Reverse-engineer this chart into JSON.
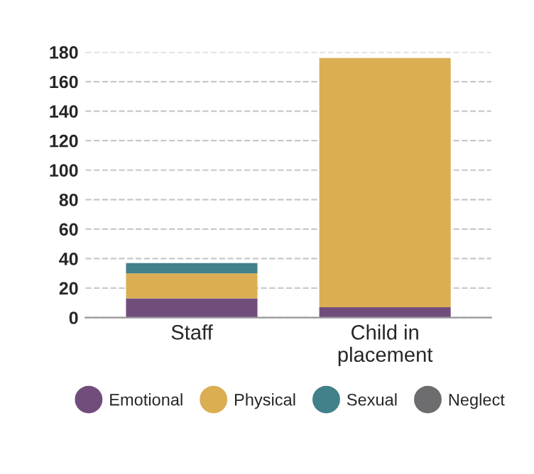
{
  "chart_data": {
    "type": "bar",
    "stacked": true,
    "categories": [
      "Staff",
      "Child in\nplacement"
    ],
    "series": [
      {
        "name": "Emotional",
        "color": "#714d7c",
        "values": [
          13,
          7
        ]
      },
      {
        "name": "Physical",
        "color": "#dbae54",
        "values": [
          17,
          169
        ]
      },
      {
        "name": "Sexual",
        "color": "#42808a",
        "values": [
          7,
          0
        ]
      },
      {
        "name": "Neglect",
        "color": "#6d6d6f",
        "values": [
          0,
          0
        ]
      }
    ],
    "ylim": [
      0,
      180
    ],
    "yticks": [
      0,
      20,
      40,
      60,
      80,
      100,
      120,
      140,
      160,
      180
    ],
    "grid": "y",
    "legend": "bottom"
  }
}
